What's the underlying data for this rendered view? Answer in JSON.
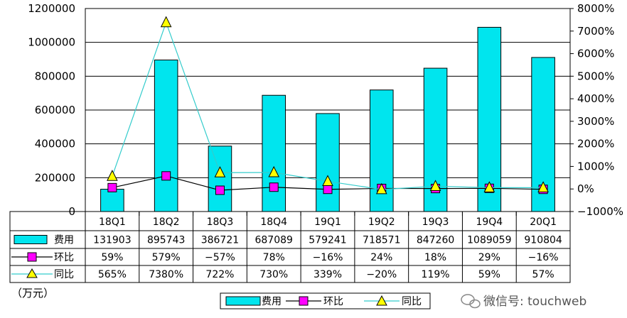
{
  "chart_data": {
    "type": "bar",
    "categories": [
      "18Q1",
      "18Q2",
      "18Q3",
      "18Q4",
      "19Q1",
      "19Q2",
      "19Q3",
      "19Q4",
      "20Q1"
    ],
    "series": [
      {
        "name": "费用",
        "type": "bar",
        "axis": "left",
        "color": "#00e5ee",
        "values": [
          131903,
          895743,
          386721,
          687089,
          579241,
          718571,
          847260,
          1089059,
          910804
        ],
        "labels": [
          "131903",
          "895743",
          "386721",
          "687089",
          "579241",
          "718571",
          "847260",
          "1089059",
          "910804"
        ]
      },
      {
        "name": "环比",
        "type": "line",
        "axis": "right",
        "color": "#ff00ff",
        "line_color": "#000000",
        "marker": "square",
        "values": [
          59,
          579,
          -57,
          78,
          -16,
          24,
          18,
          29,
          -16
        ],
        "labels": [
          "59%",
          "579%",
          "−57%",
          "78%",
          "−16%",
          "24%",
          "18%",
          "29%",
          "−16%"
        ]
      },
      {
        "name": "同比",
        "type": "line",
        "axis": "right",
        "color": "#ffff00",
        "line_color": "#33cccc",
        "marker": "triangle",
        "values": [
          565,
          7380,
          722,
          730,
          339,
          -20,
          119,
          59,
          57
        ],
        "labels": [
          "565%",
          "7380%",
          "722%",
          "730%",
          "339%",
          "−20%",
          "119%",
          "59%",
          "57%"
        ]
      }
    ],
    "y_left": {
      "min": 0,
      "max": 1200000,
      "step": 200000,
      "ticks": [
        "0",
        "200000",
        "400000",
        "600000",
        "800000",
        "1000000",
        "1200000"
      ]
    },
    "y_right": {
      "min": -1000,
      "max": 8000,
      "step": 1000,
      "ticks": [
        "−1000%",
        "0%",
        "1000%",
        "2000%",
        "3000%",
        "4000%",
        "5000%",
        "6000%",
        "7000%",
        "8000%"
      ]
    },
    "grid": true,
    "legend": {
      "position": "bottom",
      "items": [
        "费用",
        "环比",
        "同比"
      ]
    },
    "unit_label": "（万元）"
  },
  "watermark": "微信号: touchweb"
}
